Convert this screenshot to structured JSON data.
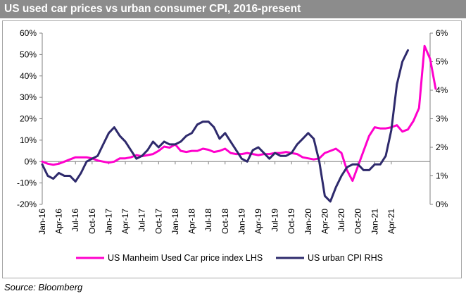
{
  "title": "US used car prices vs urban consumer CPI, 2016-present",
  "source": "Source: Bloomberg",
  "chart_data": {
    "type": "line",
    "title": "US used car prices vs urban consumer CPI, 2016-present",
    "x_tick_labels": [
      "Jan-16",
      "Apr-16",
      "Jul-16",
      "Oct-16",
      "Jan-17",
      "Apr-17",
      "Jul-17",
      "Oct-17",
      "Jan-18",
      "Apr-18",
      "Jul-18",
      "Oct-18",
      "Jan-19",
      "Apr-19",
      "Jul-19",
      "Oct-19",
      "Jan-20",
      "Apr-20",
      "Jul-20",
      "Oct-20",
      "Jan-21",
      "Apr-21"
    ],
    "y_left": {
      "ticks": [
        "-20%",
        "-10%",
        "0%",
        "10%",
        "20%",
        "30%",
        "40%",
        "50%",
        "60%"
      ],
      "lim": [
        -20,
        60
      ]
    },
    "y_right": {
      "ticks": [
        "0%",
        "1%",
        "2%",
        "3%",
        "4%",
        "5%",
        "6%"
      ],
      "lim": [
        0,
        6
      ]
    },
    "legend_position": "bottom",
    "series": [
      {
        "name": "US Manheim Used Car price index LHS",
        "axis": "left",
        "color": "#ff00cc",
        "values": [
          0,
          -1,
          -1.5,
          -1,
          0,
          1,
          2,
          2,
          2,
          1.5,
          0.5,
          0,
          -0.5,
          0,
          1.5,
          1.5,
          2,
          3,
          2.5,
          3,
          3.5,
          5,
          7,
          6.5,
          8,
          5,
          4.5,
          5,
          5,
          6,
          5.5,
          4.5,
          5,
          6,
          4,
          3.5,
          3.5,
          4,
          3.5,
          3,
          3.5,
          3.5,
          4,
          4,
          4.5,
          4,
          3.5,
          2,
          1.5,
          1,
          1.5,
          4,
          5,
          6,
          4,
          -4,
          -9,
          -2,
          5,
          12,
          16,
          15.5,
          15.5,
          16,
          17,
          14,
          15,
          19,
          25,
          54,
          48,
          34
        ]
      },
      {
        "name": "US urban CPI RHS",
        "axis": "right",
        "color": "#2e2a6c",
        "values": [
          1.4,
          1.0,
          0.9,
          1.1,
          1.0,
          1.0,
          0.8,
          1.1,
          1.5,
          1.6,
          1.7,
          2.1,
          2.5,
          2.7,
          2.4,
          2.2,
          1.9,
          1.6,
          1.7,
          1.9,
          2.2,
          2.0,
          2.2,
          2.1,
          2.1,
          2.2,
          2.4,
          2.5,
          2.8,
          2.9,
          2.9,
          2.7,
          2.3,
          2.5,
          2.2,
          1.9,
          1.6,
          1.5,
          1.9,
          2.0,
          1.8,
          1.6,
          1.8,
          1.7,
          1.7,
          1.8,
          2.1,
          2.3,
          2.5,
          2.3,
          1.5,
          0.3,
          0.1,
          0.6,
          1.0,
          1.3,
          1.4,
          1.4,
          1.2,
          1.2,
          1.4,
          1.4,
          1.7,
          2.6,
          4.2,
          5.0,
          5.4
        ]
      }
    ]
  }
}
